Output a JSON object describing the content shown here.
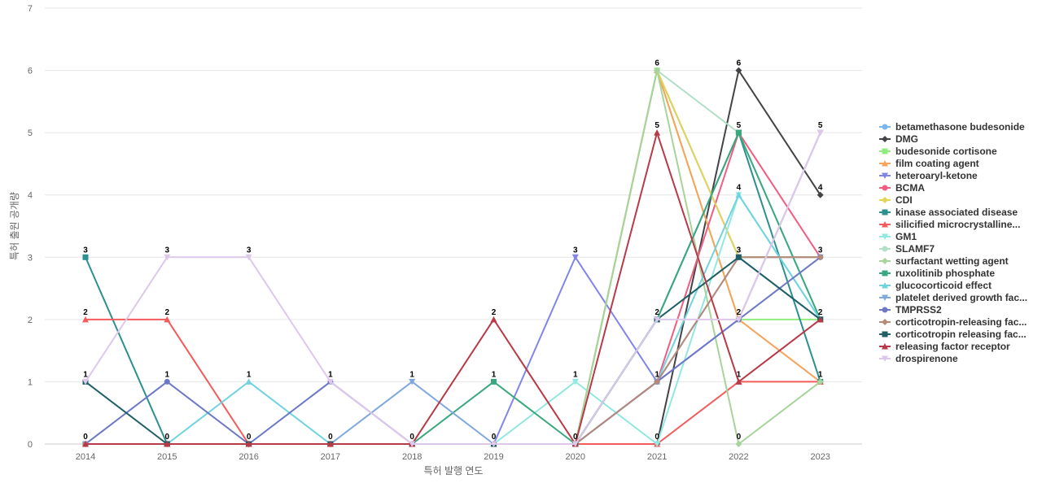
{
  "chart_data": {
    "type": "line",
    "xlabel": "특허 발행 연도",
    "ylabel": "특허 출원 공개량",
    "ylim": [
      0,
      7
    ],
    "yticks": [
      0,
      1,
      2,
      3,
      4,
      5,
      6,
      7
    ],
    "categories": [
      "2014",
      "2015",
      "2016",
      "2017",
      "2018",
      "2019",
      "2020",
      "2021",
      "2022",
      "2023"
    ],
    "grid": "horizontal",
    "legend_position": "right",
    "series": [
      {
        "name": "betamethasone budesonide",
        "color": "#7cb5ec",
        "marker": "circle",
        "values": [
          0,
          0,
          0,
          0,
          0,
          0,
          0,
          6,
          3,
          2
        ]
      },
      {
        "name": "DMG",
        "color": "#434348",
        "marker": "diamond",
        "values": [
          0,
          0,
          0,
          0,
          0,
          0,
          0,
          0,
          6,
          4
        ]
      },
      {
        "name": "budesonide cortisone",
        "color": "#90ed7d",
        "marker": "square",
        "values": [
          0,
          0,
          0,
          0,
          0,
          0,
          0,
          6,
          2,
          2
        ]
      },
      {
        "name": "film coating agent",
        "color": "#f7a35c",
        "marker": "triangle",
        "values": [
          0,
          0,
          0,
          0,
          0,
          0,
          0,
          6,
          2,
          1
        ]
      },
      {
        "name": "heteroaryl-ketone",
        "color": "#8085e9",
        "marker": "triangle-down",
        "values": [
          0,
          0,
          0,
          0,
          0,
          0,
          3,
          1,
          2,
          5
        ]
      },
      {
        "name": "BCMA",
        "color": "#f15c80",
        "marker": "circle",
        "values": [
          0,
          0,
          0,
          0,
          0,
          0,
          0,
          1,
          5,
          3
        ]
      },
      {
        "name": "CDI",
        "color": "#e4d354",
        "marker": "diamond",
        "values": [
          0,
          0,
          0,
          0,
          0,
          0,
          0,
          6,
          3,
          3
        ]
      },
      {
        "name": "kinase associated disease",
        "color": "#2b908f",
        "marker": "square",
        "values": [
          3,
          0,
          0,
          0,
          0,
          0,
          0,
          2,
          5,
          1
        ]
      },
      {
        "name": "silicified microcrystalline...",
        "color": "#f45b5b",
        "marker": "triangle",
        "values": [
          2,
          2,
          0,
          0,
          0,
          0,
          0,
          0,
          1,
          1
        ]
      },
      {
        "name": "GM1",
        "color": "#91e8e1",
        "marker": "triangle-down",
        "values": [
          0,
          0,
          0,
          0,
          0,
          0,
          1,
          0,
          4,
          2
        ]
      },
      {
        "name": "SLAMF7",
        "color": "#b3dfc9",
        "marker": "circle",
        "values": [
          0,
          0,
          0,
          0,
          0,
          0,
          0,
          6,
          5,
          2
        ]
      },
      {
        "name": "surfactant wetting agent",
        "color": "#a6d49a",
        "marker": "diamond",
        "values": [
          0,
          0,
          0,
          0,
          0,
          0,
          0,
          6,
          0,
          1
        ]
      },
      {
        "name": "ruxolitinib phosphate",
        "color": "#3aa87e",
        "marker": "square",
        "values": [
          0,
          0,
          0,
          0,
          0,
          1,
          0,
          2,
          5,
          2
        ]
      },
      {
        "name": "glucocorticoid effect",
        "color": "#6fd3e0",
        "marker": "triangle",
        "values": [
          0,
          0,
          1,
          0,
          0,
          0,
          0,
          1,
          4,
          2
        ]
      },
      {
        "name": "platelet derived growth fac...",
        "color": "#7fa8dd",
        "marker": "triangle-down",
        "values": [
          0,
          0,
          0,
          0,
          1,
          0,
          0,
          1,
          3,
          3
        ]
      },
      {
        "name": "TMPRSS2",
        "color": "#6b78c8",
        "marker": "circle",
        "values": [
          0,
          1,
          0,
          1,
          0,
          0,
          0,
          1,
          2,
          3
        ]
      },
      {
        "name": "corticotropin-releasing fac...",
        "color": "#b58a78",
        "marker": "diamond",
        "values": [
          0,
          0,
          0,
          0,
          0,
          0,
          0,
          1,
          3,
          3
        ]
      },
      {
        "name": "corticotropin releasing fac...",
        "color": "#1f5f66",
        "marker": "square",
        "values": [
          1,
          0,
          0,
          0,
          0,
          0,
          0,
          2,
          3,
          2
        ]
      },
      {
        "name": "releasing factor receptor",
        "color": "#b83a48",
        "marker": "triangle",
        "values": [
          0,
          0,
          0,
          0,
          0,
          2,
          0,
          5,
          1,
          2
        ]
      },
      {
        "name": "drospirenone",
        "color": "#ddc8ea",
        "marker": "triangle-down",
        "values": [
          1,
          3,
          3,
          1,
          0,
          0,
          0,
          2,
          2,
          5
        ]
      }
    ],
    "data_labels": [
      {
        "x": "2014",
        "y": 3,
        "text": "3"
      },
      {
        "x": "2014",
        "y": 2,
        "text": "2"
      },
      {
        "x": "2014",
        "y": 1,
        "text": "1"
      },
      {
        "x": "2014",
        "y": 0,
        "text": "0"
      },
      {
        "x": "2015",
        "y": 3,
        "text": "3"
      },
      {
        "x": "2015",
        "y": 2,
        "text": "2"
      },
      {
        "x": "2015",
        "y": 1,
        "text": "1"
      },
      {
        "x": "2015",
        "y": 0,
        "text": "0"
      },
      {
        "x": "2016",
        "y": 3,
        "text": "3"
      },
      {
        "x": "2016",
        "y": 1,
        "text": "1"
      },
      {
        "x": "2016",
        "y": 0,
        "text": "0"
      },
      {
        "x": "2017",
        "y": 1,
        "text": "1"
      },
      {
        "x": "2017",
        "y": 0,
        "text": "0"
      },
      {
        "x": "2018",
        "y": 1,
        "text": "1"
      },
      {
        "x": "2018",
        "y": 0,
        "text": "0"
      },
      {
        "x": "2019",
        "y": 2,
        "text": "2"
      },
      {
        "x": "2019",
        "y": 1,
        "text": "1"
      },
      {
        "x": "2019",
        "y": 0,
        "text": "0"
      },
      {
        "x": "2020",
        "y": 3,
        "text": "3"
      },
      {
        "x": "2020",
        "y": 1,
        "text": "1"
      },
      {
        "x": "2020",
        "y": 0,
        "text": "0"
      },
      {
        "x": "2021",
        "y": 6,
        "text": "6"
      },
      {
        "x": "2021",
        "y": 5,
        "text": "5"
      },
      {
        "x": "2021",
        "y": 2,
        "text": "2"
      },
      {
        "x": "2021",
        "y": 1,
        "text": "1"
      },
      {
        "x": "2021",
        "y": 0,
        "text": "0"
      },
      {
        "x": "2022",
        "y": 6,
        "text": "6"
      },
      {
        "x": "2022",
        "y": 5,
        "text": "5"
      },
      {
        "x": "2022",
        "y": 4,
        "text": "4"
      },
      {
        "x": "2022",
        "y": 3,
        "text": "3"
      },
      {
        "x": "2022",
        "y": 2,
        "text": "2"
      },
      {
        "x": "2022",
        "y": 1,
        "text": "1"
      },
      {
        "x": "2022",
        "y": 0,
        "text": "0"
      },
      {
        "x": "2023",
        "y": 5,
        "text": "5"
      },
      {
        "x": "2023",
        "y": 4,
        "text": "4"
      },
      {
        "x": "2023",
        "y": 3,
        "text": "3"
      },
      {
        "x": "2023",
        "y": 2,
        "text": "2"
      },
      {
        "x": "2023",
        "y": 1,
        "text": "1"
      }
    ]
  }
}
